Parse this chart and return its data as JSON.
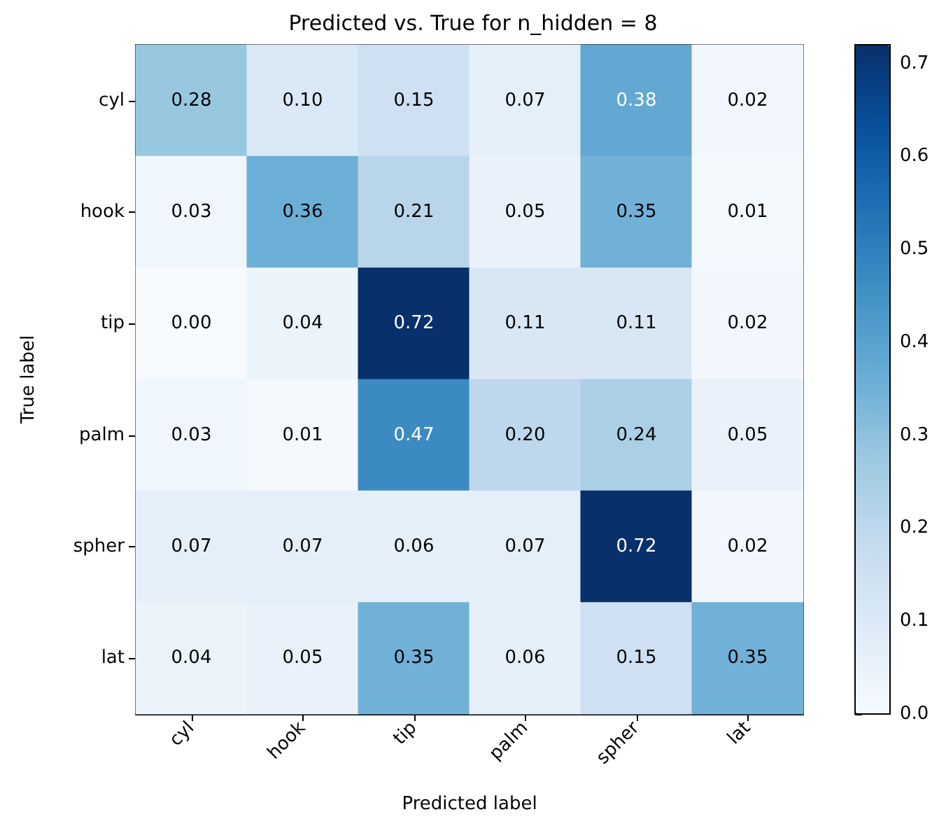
{
  "chart_data": {
    "type": "heatmap",
    "title": "Predicted vs. True for n_hidden = 8",
    "xlabel": "Predicted label",
    "ylabel": "True label",
    "categories": [
      "cyl",
      "hook",
      "tip",
      "palm",
      "spher",
      "lat"
    ],
    "y_categories": [
      "cyl",
      "hook",
      "tip",
      "palm",
      "spher",
      "lat"
    ],
    "cells": [
      [
        0.28,
        0.1,
        0.15,
        0.07,
        0.38,
        0.02
      ],
      [
        0.03,
        0.36,
        0.21,
        0.05,
        0.35,
        0.01
      ],
      [
        0.0,
        0.04,
        0.72,
        0.11,
        0.11,
        0.02
      ],
      [
        0.03,
        0.01,
        0.47,
        0.2,
        0.24,
        0.05
      ],
      [
        0.07,
        0.07,
        0.06,
        0.07,
        0.72,
        0.02
      ],
      [
        0.04,
        0.05,
        0.35,
        0.06,
        0.15,
        0.35
      ]
    ],
    "cell_labels": [
      [
        "0.28",
        "0.10",
        "0.15",
        "0.07",
        "0.38",
        "0.02"
      ],
      [
        "0.03",
        "0.36",
        "0.21",
        "0.05",
        "0.35",
        "0.01"
      ],
      [
        "0.00",
        "0.04",
        "0.72",
        "0.11",
        "0.11",
        "0.02"
      ],
      [
        "0.03",
        "0.01",
        "0.47",
        "0.20",
        "0.24",
        "0.05"
      ],
      [
        "0.07",
        "0.07",
        "0.06",
        "0.07",
        "0.72",
        "0.02"
      ],
      [
        "0.04",
        "0.05",
        "0.35",
        "0.06",
        "0.15",
        "0.35"
      ]
    ],
    "clim": [
      0,
      0.72
    ],
    "cticks": [
      {
        "value": 0,
        "label": "0.0"
      },
      0.1,
      0.2,
      0.3,
      0.4,
      0.5,
      0.6,
      0.7
    ]
  }
}
